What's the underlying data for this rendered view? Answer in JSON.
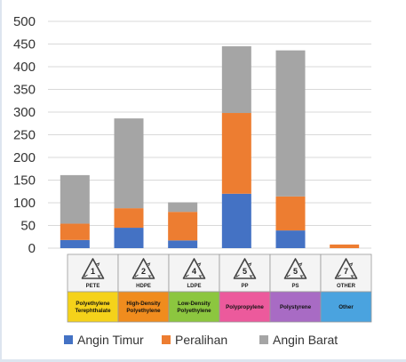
{
  "chart_data": {
    "type": "bar",
    "stacked": true,
    "title": "",
    "xlabel": "",
    "ylabel": "",
    "ylim": [
      0,
      500
    ],
    "y_ticks": [
      0,
      50,
      100,
      150,
      200,
      250,
      300,
      350,
      400,
      450,
      500
    ],
    "grid": true,
    "legend_position": "bottom",
    "categories": [
      {
        "number": "1",
        "code": "PETE",
        "name_lines": [
          "Polyethylene",
          "Terephthalate"
        ],
        "color": "#f5d21a"
      },
      {
        "number": "2",
        "code": "HDPE",
        "name_lines": [
          "High-Density",
          "Polyethylene"
        ],
        "color": "#f08c1e"
      },
      {
        "number": "4",
        "code": "LDPE",
        "name_lines": [
          "Low-Density",
          "Polyethylene"
        ],
        "color": "#8cc63f"
      },
      {
        "number": "5",
        "code": "PP",
        "name_lines": [
          "Polypropylene"
        ],
        "color": "#ec5a9c"
      },
      {
        "number": "5",
        "code": "PS",
        "name_lines": [
          "Polystyrene"
        ],
        "color": "#a86bc4"
      },
      {
        "number": "7",
        "code": "OTHER",
        "name_lines": [
          "Other"
        ],
        "color": "#4aa3df"
      }
    ],
    "series": [
      {
        "name": "Angin Timur",
        "color": "#4472c4",
        "values": [
          18,
          45,
          17,
          120,
          39,
          0
        ]
      },
      {
        "name": "Peralihan",
        "color": "#ed7d31",
        "values": [
          36,
          43,
          63,
          178,
          75,
          8
        ]
      },
      {
        "name": "Angin Barat",
        "color": "#a5a5a5",
        "values": [
          107,
          198,
          21,
          147,
          322,
          0
        ]
      }
    ]
  }
}
